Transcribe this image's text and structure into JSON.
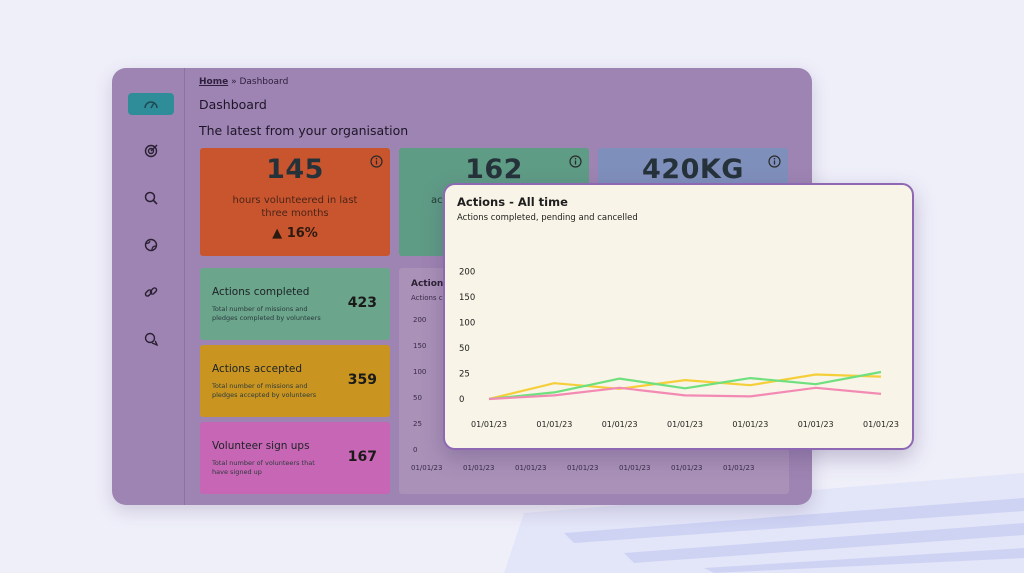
{
  "breadcrumb": {
    "home": "Home",
    "separator": "»",
    "current": "Dashboard"
  },
  "page_title": "Dashboard",
  "subtitle": "The latest from your organisation",
  "sidebar": {
    "items": [
      {
        "icon": "dashboard-icon",
        "active": true
      },
      {
        "icon": "target-icon",
        "active": false
      },
      {
        "icon": "search-icon",
        "active": false
      },
      {
        "icon": "globe-icon",
        "active": false
      },
      {
        "icon": "link-icon",
        "active": false
      },
      {
        "icon": "chat-icon",
        "active": false
      }
    ]
  },
  "stats": [
    {
      "value": "145",
      "label": "hours volunteered in last three months",
      "trend": "▲ 16%",
      "color": "#c9552e"
    },
    {
      "value": "162",
      "label": "ac",
      "color": "#5f9c86"
    },
    {
      "value": "420KG",
      "label": "",
      "color": "#7f8fbb"
    }
  ],
  "metrics": [
    {
      "title": "Actions completed",
      "desc": "Total number of missions and pledges completed by volunteers",
      "value": "423",
      "color": "#6aa58c"
    },
    {
      "title": "Actions accepted",
      "desc": "Total number of missions and pledges accepted by volunteers",
      "value": "359",
      "color": "#c99520"
    },
    {
      "title": "Volunteer sign ups",
      "desc": "Total number of volunteers that have signed up",
      "value": "167",
      "color": "#c766b4"
    }
  ],
  "background_chart": {
    "title": "Actions",
    "subtitle": "Actions c",
    "y_labels": [
      "200",
      "150",
      "100",
      "50",
      "25",
      "0"
    ],
    "x_labels": [
      "01/01/23",
      "01/01/23",
      "01/01/23",
      "01/01/23",
      "01/01/23",
      "01/01/23",
      "01/01/23"
    ]
  },
  "chart_data": {
    "type": "line",
    "title": "Actions - All time",
    "subtitle": "Actions completed, pending and cancelled",
    "categories": [
      "01/01/23",
      "01/01/23",
      "01/01/23",
      "01/01/23",
      "01/01/23",
      "01/01/23",
      "01/01/23"
    ],
    "y_ticks": [
      0,
      25,
      50,
      100,
      150,
      200
    ],
    "grid": false,
    "legend": "none",
    "series": [
      {
        "color": "#f5cf3a",
        "values": [
          0,
          15.5,
          10,
          18.5,
          13.5,
          24,
          22
        ]
      },
      {
        "color": "#6fe07e",
        "values": [
          0,
          6.5,
          20,
          10.5,
          20.5,
          14.5,
          26.5
        ]
      },
      {
        "color": "#f38ab4",
        "values": [
          0,
          3.5,
          11,
          3.5,
          2.5,
          11,
          5
        ]
      }
    ]
  }
}
